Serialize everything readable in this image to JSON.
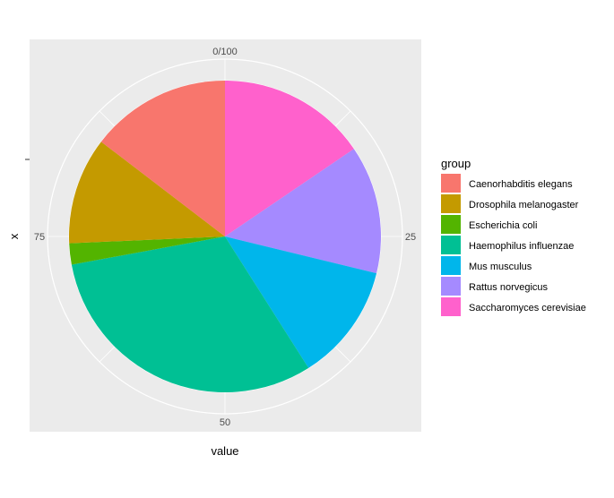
{
  "chart_data": {
    "type": "pie",
    "xlabel": "value",
    "ylabel": "x",
    "angle_ticks": [
      "0/100",
      "25",
      "50",
      "75"
    ],
    "angle_tick_values": [
      0,
      25,
      50,
      75
    ],
    "legend_title": "group",
    "legend_position": "right",
    "grid": true,
    "slices": [
      {
        "name": "Saccharomyces cerevisiae",
        "value": 15.5,
        "color": "#FF61CC"
      },
      {
        "name": "Rattus norvegicus",
        "value": 13.3,
        "color": "#A58AFF"
      },
      {
        "name": "Mus musculus",
        "value": 12.2,
        "color": "#00B6EB"
      },
      {
        "name": "Haemophilus influenzae",
        "value": 31.1,
        "color": "#00C094"
      },
      {
        "name": "Escherichia coli",
        "value": 2.2,
        "color": "#53B400"
      },
      {
        "name": "Drosophila melanogaster",
        "value": 11.1,
        "color": "#C49A00"
      },
      {
        "name": "Caenorhabditis elegans",
        "value": 14.6,
        "color": "#F8766D"
      }
    ],
    "legend_order": [
      "Caenorhabditis elegans",
      "Drosophila melanogaster",
      "Escherichia coli",
      "Haemophilus influenzae",
      "Mus musculus",
      "Rattus norvegicus",
      "Saccharomyces cerevisiae"
    ]
  }
}
